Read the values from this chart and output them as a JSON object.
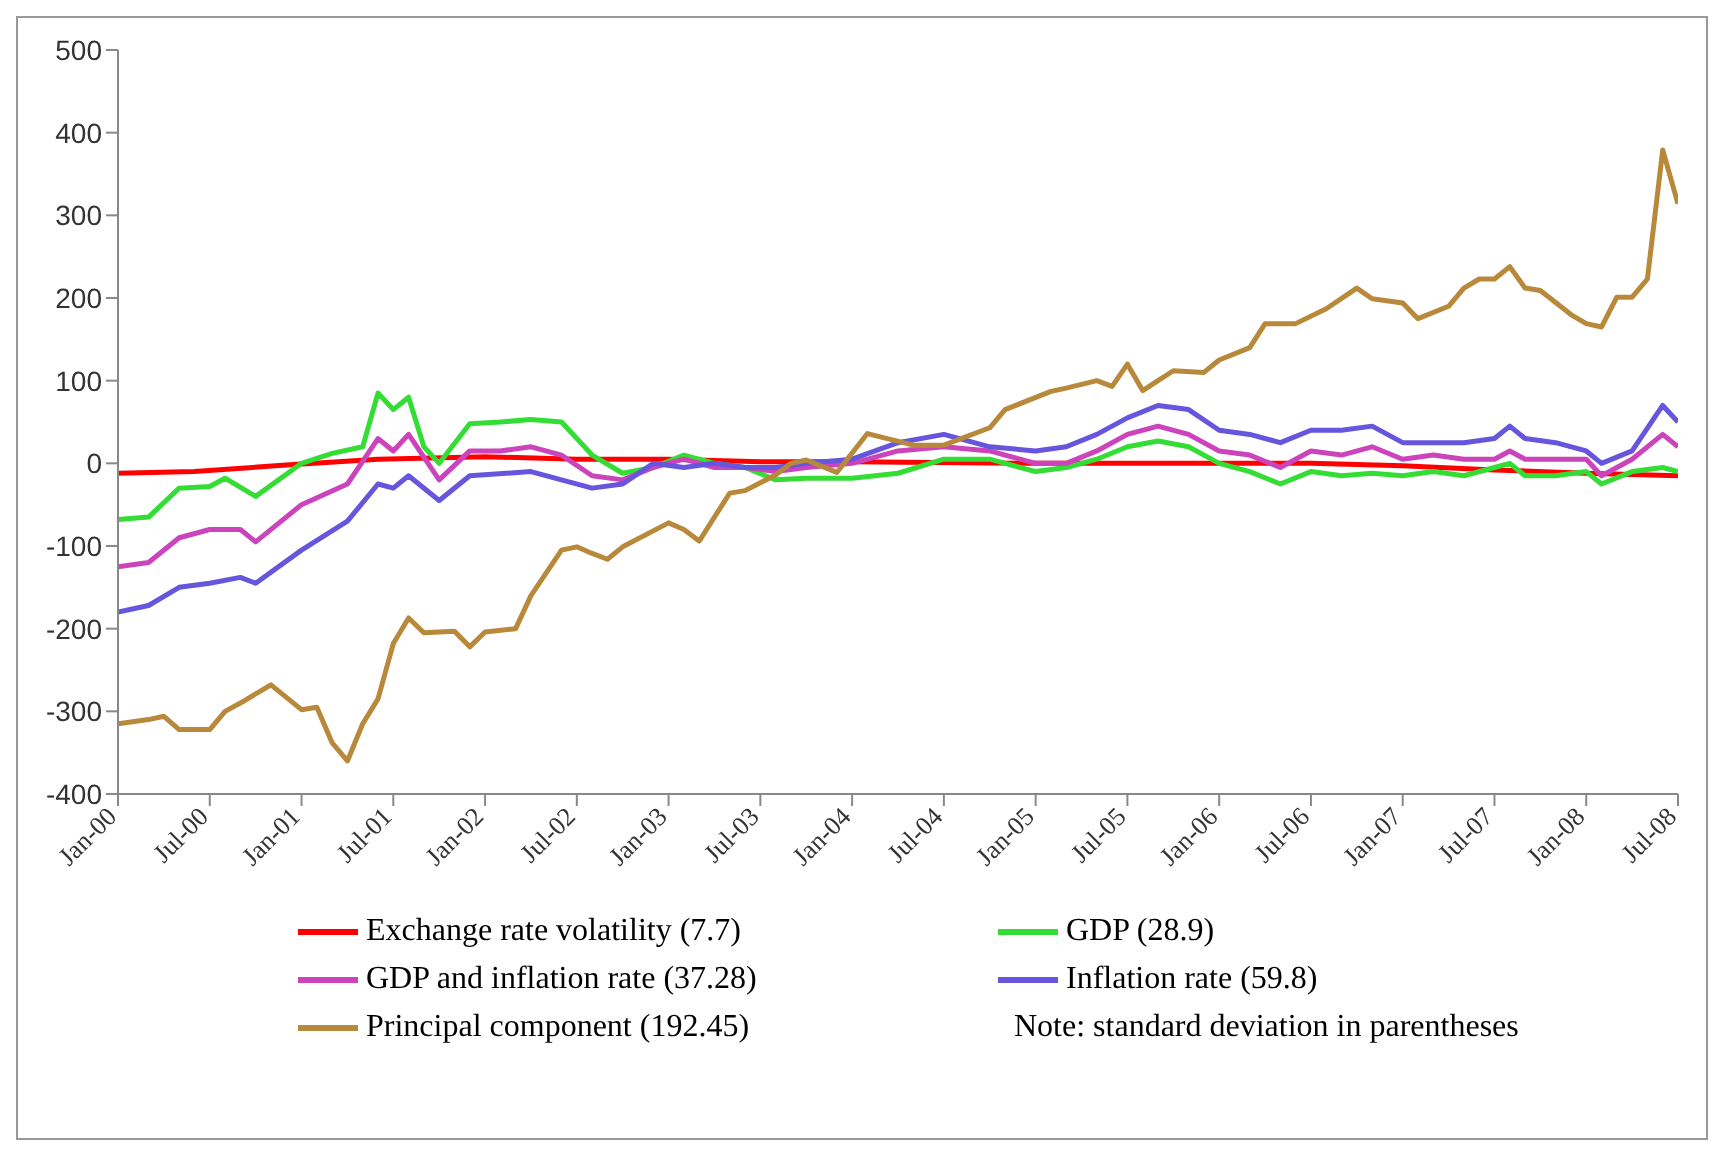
{
  "chart_data": {
    "type": "line",
    "xlim": [
      "2000-01",
      "2008-07"
    ],
    "xticks": [
      {
        "value": "2000-01",
        "label": "Jan-00"
      },
      {
        "value": "2000-07",
        "label": "Jul-00"
      },
      {
        "value": "2001-01",
        "label": "Jan-01"
      },
      {
        "value": "2001-07",
        "label": "Jul-01"
      },
      {
        "value": "2002-01",
        "label": "Jan-02"
      },
      {
        "value": "2002-07",
        "label": "Jul-02"
      },
      {
        "value": "2003-01",
        "label": "Jan-03"
      },
      {
        "value": "2003-07",
        "label": "Jul-03"
      },
      {
        "value": "2004-01",
        "label": "Jan-04"
      },
      {
        "value": "2004-07",
        "label": "Jul-04"
      },
      {
        "value": "2005-01",
        "label": "Jan-05"
      },
      {
        "value": "2005-07",
        "label": "Jul-05"
      },
      {
        "value": "2006-01",
        "label": "Jan-06"
      },
      {
        "value": "2006-07",
        "label": "Jul-06"
      },
      {
        "value": "2007-01",
        "label": "Jan-07"
      },
      {
        "value": "2007-07",
        "label": "Jul-07"
      },
      {
        "value": "2008-01",
        "label": "Jan-08"
      },
      {
        "value": "2008-07",
        "label": "Jul-08"
      }
    ],
    "ylim": [
      -400,
      500
    ],
    "yticks": [
      -400,
      -300,
      -200,
      -100,
      0,
      100,
      200,
      300,
      400,
      500
    ],
    "legend": "bottom",
    "marker": "none",
    "line_style": "solid",
    "annotations": [
      "Note: standard deviation in parentheses"
    ],
    "series": [
      {
        "name": "Exchange rate volatility (7.7)",
        "color": "#ff0000",
        "x": [
          "2000-01",
          "2000-06",
          "2000-12",
          "2001-06",
          "2002-01",
          "2002-07",
          "2003-01",
          "2003-07",
          "2004-01",
          "2005-01",
          "2006-01",
          "2006-07",
          "2007-01",
          "2007-07",
          "2008-01",
          "2008-07"
        ],
        "values": [
          -12,
          -10,
          -2,
          5,
          8,
          5,
          5,
          2,
          2,
          0,
          0,
          0,
          -3,
          -8,
          -12,
          -15
        ]
      },
      {
        "name": "GDP (28.9)",
        "color": "#33dd33",
        "x": [
          "2000-01",
          "2000-03",
          "2000-05",
          "2000-07",
          "2000-08",
          "2000-10",
          "2001-01",
          "2001-03",
          "2001-05",
          "2001-06",
          "2001-07",
          "2001-08",
          "2001-09",
          "2001-10",
          "2001-12",
          "2002-02",
          "2002-04",
          "2002-06",
          "2002-08",
          "2002-10",
          "2002-12",
          "2003-02",
          "2003-04",
          "2003-06",
          "2003-08",
          "2003-10",
          "2004-01",
          "2004-04",
          "2004-07",
          "2004-10",
          "2005-01",
          "2005-03",
          "2005-05",
          "2005-07",
          "2005-09",
          "2005-11",
          "2006-01",
          "2006-03",
          "2006-05",
          "2006-07",
          "2006-09",
          "2006-11",
          "2007-01",
          "2007-03",
          "2007-05",
          "2007-07",
          "2007-08",
          "2007-09",
          "2007-11",
          "2008-01",
          "2008-02",
          "2008-04",
          "2008-06",
          "2008-07"
        ],
        "values": [
          -68,
          -65,
          -30,
          -28,
          -18,
          -40,
          0,
          12,
          20,
          85,
          65,
          80,
          20,
          0,
          48,
          50,
          53,
          50,
          10,
          -12,
          -5,
          10,
          0,
          -5,
          -20,
          -18,
          -18,
          -12,
          5,
          5,
          -10,
          -5,
          5,
          20,
          27,
          20,
          0,
          -10,
          -25,
          -10,
          -15,
          -12,
          -15,
          -10,
          -15,
          -5,
          0,
          -15,
          -15,
          -10,
          -25,
          -10,
          -5,
          -10
        ]
      },
      {
        "name": "GDP and inflation rate (37.28)",
        "color": "#cc44bb",
        "x": [
          "2000-01",
          "2000-03",
          "2000-05",
          "2000-07",
          "2000-09",
          "2000-10",
          "2001-01",
          "2001-04",
          "2001-06",
          "2001-07",
          "2001-08",
          "2001-10",
          "2001-12",
          "2002-02",
          "2002-04",
          "2002-06",
          "2002-08",
          "2002-10",
          "2002-12",
          "2003-02",
          "2003-04",
          "2003-06",
          "2003-08",
          "2003-10",
          "2004-01",
          "2004-04",
          "2004-07",
          "2004-10",
          "2005-01",
          "2005-03",
          "2005-05",
          "2005-07",
          "2005-09",
          "2005-11",
          "2006-01",
          "2006-03",
          "2006-05",
          "2006-07",
          "2006-09",
          "2006-11",
          "2007-01",
          "2007-03",
          "2007-05",
          "2007-07",
          "2007-08",
          "2007-09",
          "2007-11",
          "2008-01",
          "2008-02",
          "2008-04",
          "2008-06",
          "2008-07"
        ],
        "values": [
          -125,
          -120,
          -90,
          -80,
          -80,
          -95,
          -50,
          -25,
          30,
          15,
          35,
          -20,
          15,
          15,
          20,
          10,
          -15,
          -20,
          -5,
          5,
          -5,
          -5,
          -10,
          -5,
          0,
          15,
          20,
          15,
          0,
          0,
          15,
          35,
          45,
          35,
          15,
          10,
          -5,
          15,
          10,
          20,
          5,
          10,
          5,
          5,
          15,
          5,
          5,
          5,
          -15,
          5,
          35,
          20
        ]
      },
      {
        "name": "Inflation rate (59.8)",
        "color": "#6655dd",
        "x": [
          "2000-01",
          "2000-03",
          "2000-05",
          "2000-07",
          "2000-09",
          "2000-10",
          "2001-01",
          "2001-04",
          "2001-06",
          "2001-07",
          "2001-08",
          "2001-10",
          "2001-12",
          "2002-04",
          "2002-06",
          "2002-08",
          "2002-10",
          "2002-12",
          "2003-02",
          "2003-04",
          "2003-06",
          "2003-08",
          "2003-10",
          "2004-01",
          "2004-04",
          "2004-07",
          "2004-10",
          "2005-01",
          "2005-03",
          "2005-05",
          "2005-07",
          "2005-09",
          "2005-11",
          "2006-01",
          "2006-03",
          "2006-05",
          "2006-07",
          "2006-09",
          "2006-11",
          "2007-01",
          "2007-03",
          "2007-05",
          "2007-07",
          "2007-08",
          "2007-09",
          "2007-11",
          "2008-01",
          "2008-02",
          "2008-04",
          "2008-06",
          "2008-07"
        ],
        "values": [
          -180,
          -172,
          -150,
          -145,
          -138,
          -145,
          -105,
          -70,
          -25,
          -30,
          -15,
          -45,
          -15,
          -10,
          -20,
          -30,
          -25,
          0,
          -5,
          0,
          -5,
          -5,
          0,
          5,
          25,
          35,
          20,
          15,
          20,
          35,
          55,
          70,
          65,
          40,
          35,
          25,
          40,
          40,
          45,
          25,
          25,
          25,
          30,
          45,
          30,
          25,
          15,
          0,
          15,
          70,
          50
        ]
      },
      {
        "name": "Principal component (192.45)",
        "color": "#b8893a",
        "x": [
          "2000-01",
          "2000-03",
          "2000-04",
          "2000-05",
          "2000-07",
          "2000-08",
          "2000-09",
          "2000-11",
          "2001-01",
          "2001-02",
          "2001-03",
          "2001-04",
          "2001-05",
          "2001-06",
          "2001-07",
          "2001-08",
          "2001-09",
          "2001-11",
          "2001-12",
          "2002-01",
          "2002-03",
          "2002-04",
          "2002-06",
          "2002-07",
          "2002-08",
          "2002-09",
          "2002-10",
          "2003-01",
          "2003-02",
          "2003-03",
          "2003-05",
          "2003-06",
          "2003-08",
          "2003-09",
          "2003-10",
          "2003-12",
          "2004-02",
          "2004-05",
          "2004-07",
          "2004-10",
          "2004-11",
          "2005-02",
          "2005-03",
          "2005-05",
          "2005-06",
          "2005-07",
          "2005-08",
          "2005-09",
          "2005-10",
          "2005-12",
          "2006-01",
          "2006-03",
          "2006-04",
          "2006-06",
          "2006-08",
          "2006-10",
          "2006-11",
          "2007-01",
          "2007-02",
          "2007-04",
          "2007-05",
          "2007-06",
          "2007-07",
          "2007-08",
          "2007-09",
          "2007-10",
          "2007-12",
          "2008-01",
          "2008-02",
          "2008-03",
          "2008-04",
          "2008-05",
          "2008-06",
          "2008-07"
        ],
        "values": [
          -315,
          -310,
          -306,
          -322,
          -322,
          -300,
          -290,
          -268,
          -298,
          -295,
          -338,
          -360,
          -315,
          -285,
          -218,
          -187,
          -205,
          -203,
          -222,
          -204,
          -200,
          -160,
          -105,
          -101,
          -109,
          -116,
          -101,
          -72,
          -80,
          -94,
          -36,
          -33,
          -14,
          0,
          4,
          -11,
          36,
          22,
          22,
          43,
          65,
          87,
          91,
          100,
          93,
          120,
          88,
          100,
          112,
          110,
          125,
          140,
          169,
          169,
          187,
          212,
          199,
          194,
          175,
          190,
          212,
          223,
          223,
          238,
          212,
          209,
          180,
          169,
          165,
          201,
          201,
          223,
          379,
          314
        ]
      }
    ]
  }
}
